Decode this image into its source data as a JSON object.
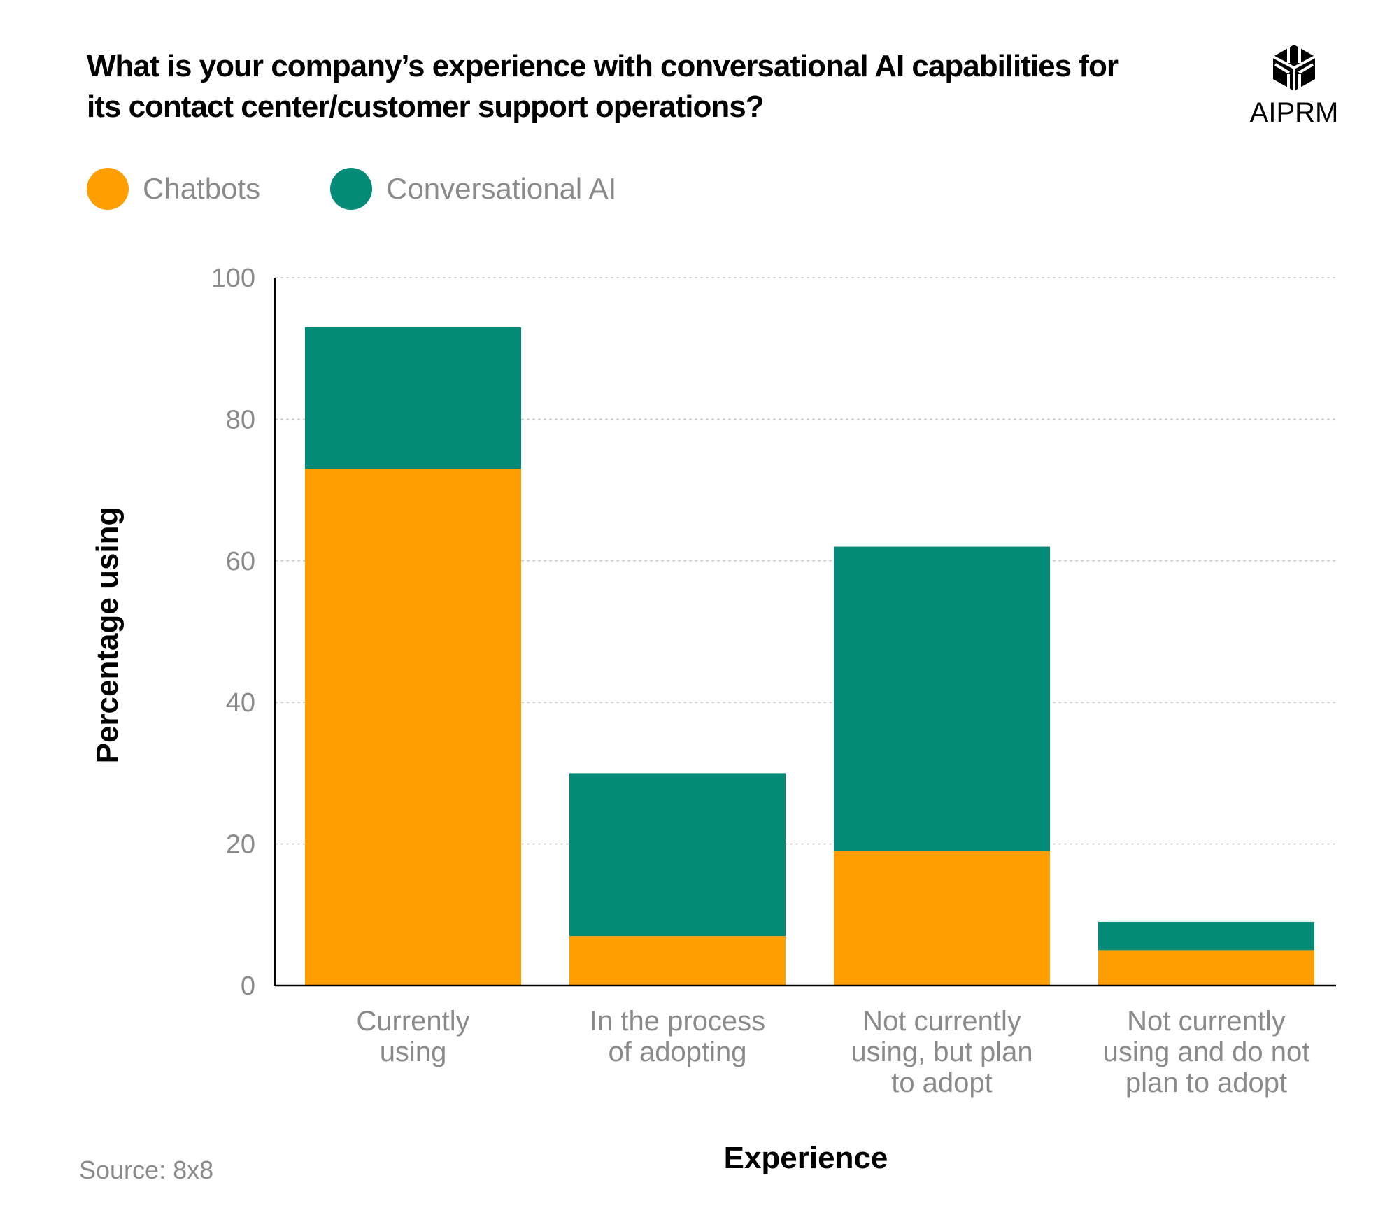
{
  "chart_data": {
    "type": "bar",
    "stacked": true,
    "title": "What is your company’s experience with conversational AI capabilities for its contact center/customer support operations?",
    "xlabel": "Experience",
    "ylabel": "Percentage using",
    "ylim": [
      0,
      100
    ],
    "yticks": [
      0,
      20,
      40,
      60,
      80,
      100
    ],
    "grid": true,
    "legend_placement": "top-left",
    "categories": [
      [
        "Currently",
        "using"
      ],
      [
        "In the process",
        "of adopting"
      ],
      [
        "Not currently",
        "using, but plan",
        "to adopt"
      ],
      [
        "Not currently",
        "using and do not",
        "plan to adopt"
      ]
    ],
    "series": [
      {
        "name": "Chatbots",
        "color": "#FF9E00",
        "values": [
          73,
          7,
          19,
          5
        ]
      },
      {
        "name": "Conversational AI",
        "color": "#048B78",
        "values": [
          20,
          23,
          43,
          4
        ]
      }
    ],
    "source": "Source: 8x8"
  },
  "logo": {
    "text": "AIPRM"
  }
}
